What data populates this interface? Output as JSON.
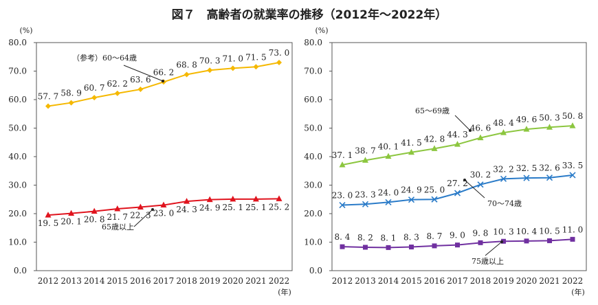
{
  "title": "図７　高齢者の就業率の推移（2012年～2022年）",
  "chart_data": [
    {
      "type": "line",
      "ylabel": "(%)",
      "xlabel": "(年)",
      "ylim": [
        0,
        80
      ],
      "yticks": [
        "0.0",
        "10.0",
        "20.0",
        "30.0",
        "40.0",
        "50.0",
        "60.0",
        "70.0",
        "80.0"
      ],
      "categories": [
        "2012",
        "2013",
        "2014",
        "2015",
        "2016",
        "2017",
        "2018",
        "2019",
        "2020",
        "2021",
        "2022"
      ],
      "grid": false,
      "series": [
        {
          "name": "（参考）60～64歳",
          "color": "#f5b800",
          "marker": "diamond",
          "values": [
            57.7,
            58.9,
            60.7,
            62.2,
            63.6,
            66.2,
            68.8,
            70.3,
            71.0,
            71.5,
            73.0
          ]
        },
        {
          "name": "65歳以上",
          "color": "#e0141e",
          "marker": "triangle",
          "values": [
            19.5,
            20.1,
            20.8,
            21.7,
            22.3,
            23.0,
            24.3,
            24.9,
            25.1,
            25.1,
            25.2
          ]
        }
      ]
    },
    {
      "type": "line",
      "ylabel": "(%)",
      "xlabel": "(年)",
      "ylim": [
        0,
        80
      ],
      "yticks": [
        "0.0",
        "10.0",
        "20.0",
        "30.0",
        "40.0",
        "50.0",
        "60.0",
        "70.0",
        "80.0"
      ],
      "categories": [
        "2012",
        "2013",
        "2014",
        "2015",
        "2016",
        "2017",
        "2018",
        "2019",
        "2020",
        "2021",
        "2022"
      ],
      "grid": false,
      "series": [
        {
          "name": "65～69歳",
          "color": "#8cc63f",
          "marker": "triangle",
          "values": [
            37.1,
            38.7,
            40.1,
            41.5,
            42.8,
            44.3,
            46.6,
            48.4,
            49.6,
            50.3,
            50.8
          ]
        },
        {
          "name": "70～74歳",
          "color": "#2a7bc8",
          "marker": "x",
          "values": [
            23.0,
            23.3,
            24.0,
            24.9,
            25.0,
            27.2,
            30.2,
            32.2,
            32.5,
            32.6,
            33.5
          ]
        },
        {
          "name": "75歳以上",
          "color": "#7030a0",
          "marker": "square",
          "values": [
            8.4,
            8.2,
            8.1,
            8.3,
            8.7,
            9.0,
            9.8,
            10.3,
            10.4,
            10.5,
            11.0
          ]
        }
      ]
    }
  ]
}
